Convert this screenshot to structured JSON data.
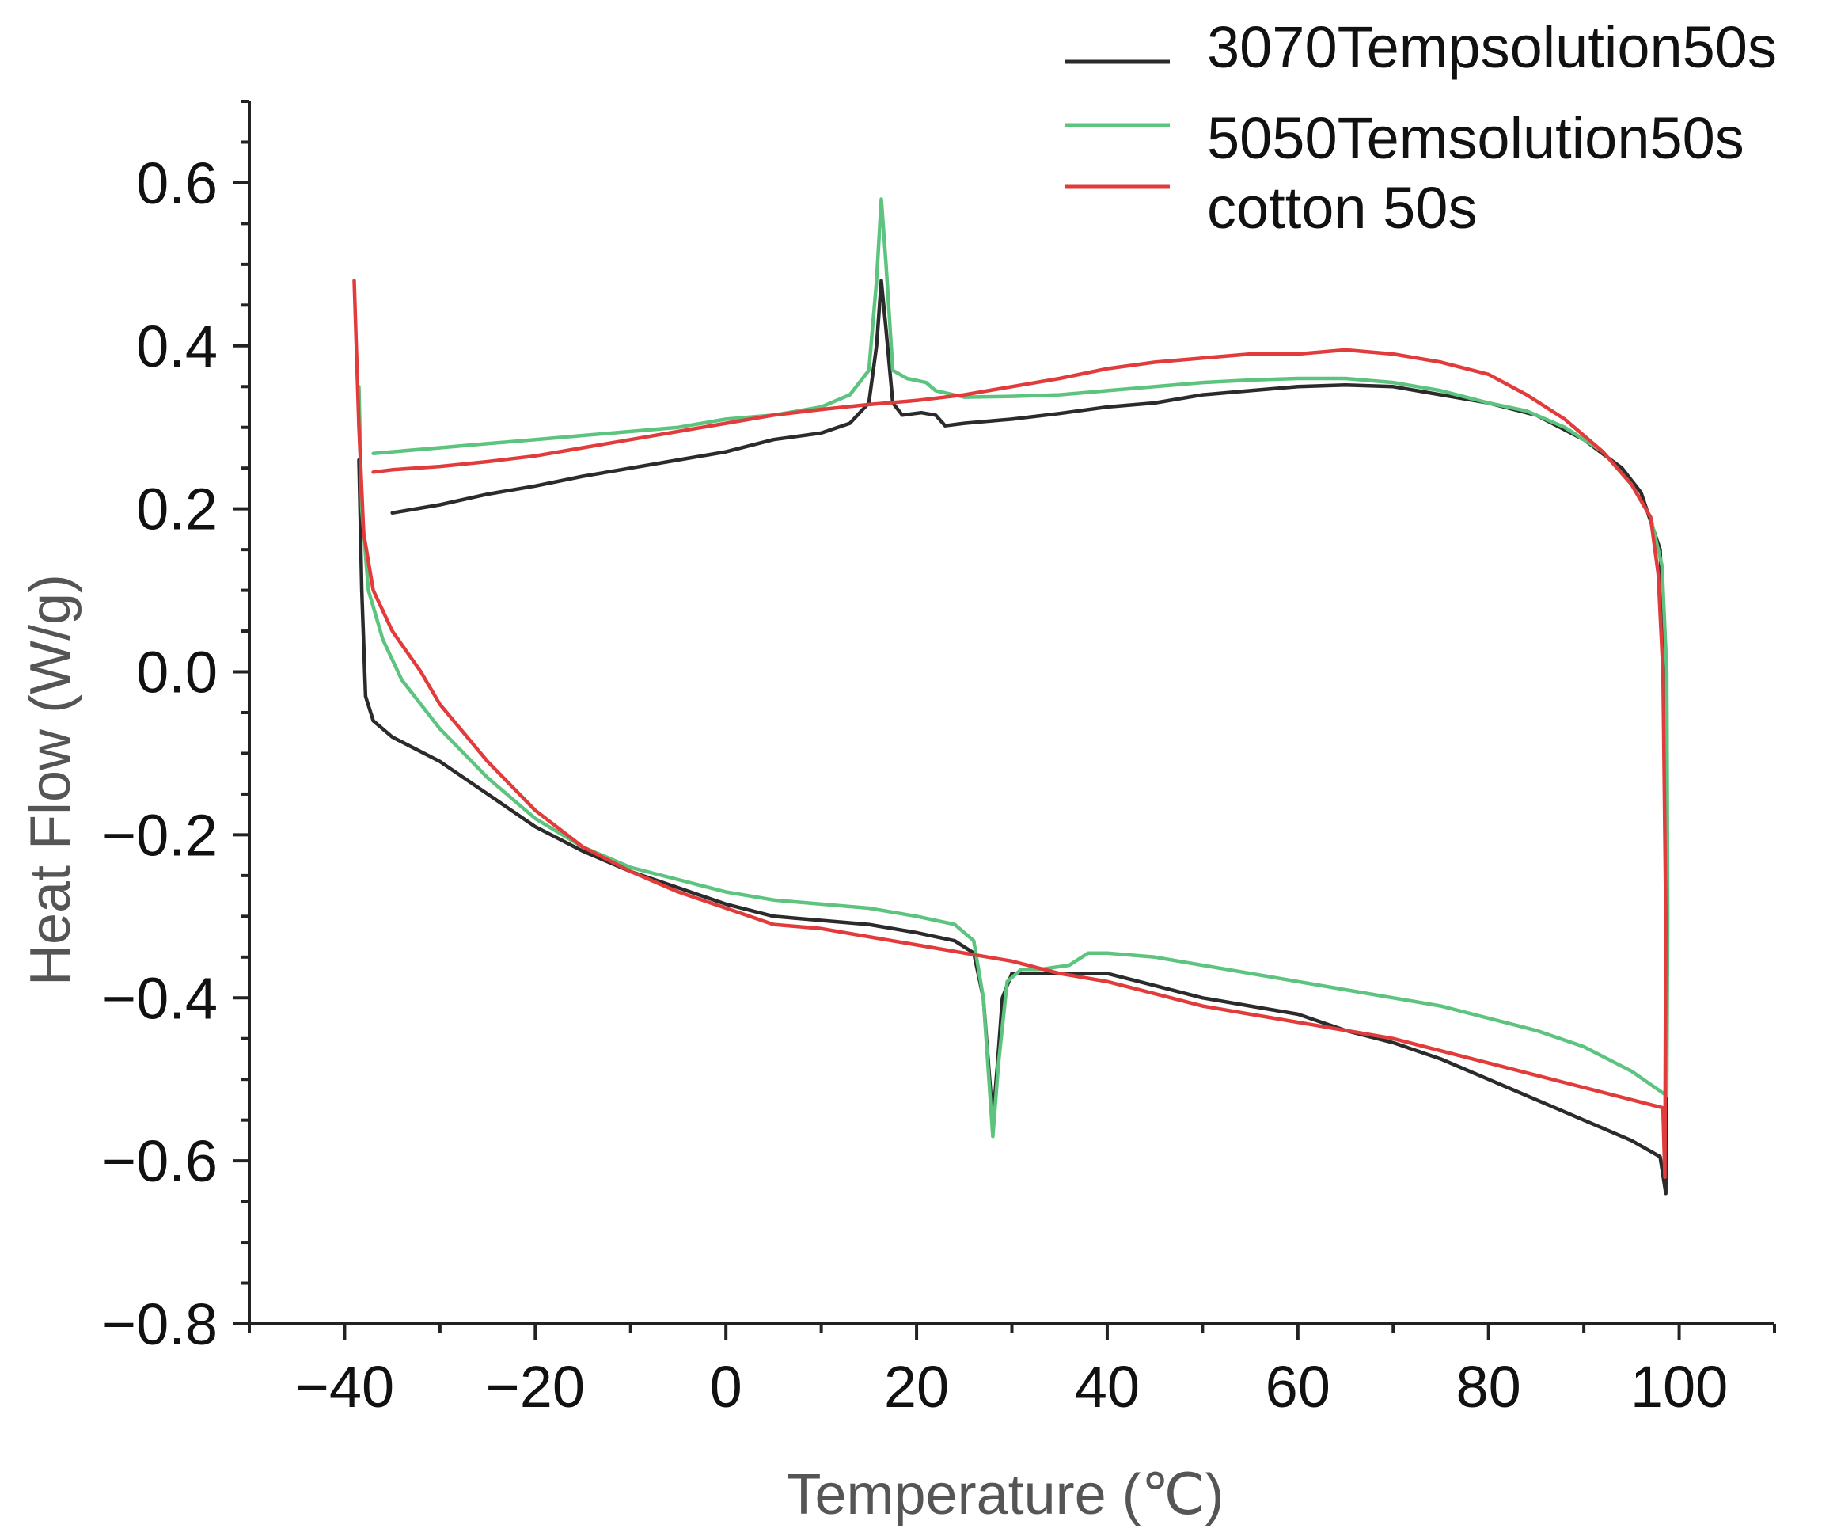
{
  "chart_data": {
    "type": "line",
    "title": "",
    "xlabel": "Temperature (℃)",
    "ylabel": "Heat Flow (W/g)",
    "xlim": [
      -50,
      110
    ],
    "ylim": [
      -0.8,
      0.7
    ],
    "x_ticks": [
      -40,
      -20,
      0,
      20,
      40,
      60,
      80,
      100
    ],
    "x_tick_labels": [
      "−40",
      "−20",
      "0",
      "20",
      "40",
      "60",
      "80",
      "100"
    ],
    "y_ticks": [
      0.6,
      0.4,
      0.2,
      0.0,
      -0.2,
      -0.4,
      -0.6,
      -0.8
    ],
    "y_tick_labels": [
      "0.6",
      "0.4",
      "0.2",
      "0.0",
      "−0.2",
      "−0.4",
      "−0.6",
      "−0.8"
    ],
    "grid": false,
    "legend_position": "top-right",
    "series": [
      {
        "name": "3070Tempsolution50s",
        "color": "#2b2b2b",
        "points": [
          [
            -38.5,
            0.26
          ],
          [
            -38.2,
            0.1
          ],
          [
            -37.8,
            -0.03
          ],
          [
            -37,
            -0.06
          ],
          [
            -35,
            -0.08
          ],
          [
            -30,
            -0.11
          ],
          [
            -25,
            -0.15
          ],
          [
            -20,
            -0.19
          ],
          [
            -15,
            -0.22
          ],
          [
            -10,
            -0.245
          ],
          [
            -5,
            -0.265
          ],
          [
            0,
            -0.285
          ],
          [
            5,
            -0.3
          ],
          [
            10,
            -0.305
          ],
          [
            15,
            -0.31
          ],
          [
            20,
            -0.32
          ],
          [
            24,
            -0.33
          ],
          [
            26,
            -0.345
          ],
          [
            27,
            -0.4
          ],
          [
            28,
            -0.55
          ],
          [
            28.5,
            -0.48
          ],
          [
            29,
            -0.4
          ],
          [
            30,
            -0.37
          ],
          [
            35,
            -0.37
          ],
          [
            40,
            -0.37
          ],
          [
            45,
            -0.385
          ],
          [
            50,
            -0.4
          ],
          [
            55,
            -0.41
          ],
          [
            60,
            -0.42
          ],
          [
            65,
            -0.44
          ],
          [
            70,
            -0.455
          ],
          [
            75,
            -0.475
          ],
          [
            80,
            -0.5
          ],
          [
            85,
            -0.525
          ],
          [
            90,
            -0.55
          ],
          [
            95,
            -0.575
          ],
          [
            98,
            -0.595
          ],
          [
            98.6,
            -0.64
          ],
          [
            98.7,
            -0.3
          ],
          [
            98.5,
            0.0
          ],
          [
            98,
            0.15
          ],
          [
            96,
            0.22
          ],
          [
            94,
            0.25
          ],
          [
            90,
            0.285
          ],
          [
            85,
            0.315
          ],
          [
            80,
            0.33
          ],
          [
            75,
            0.34
          ],
          [
            70,
            0.35
          ],
          [
            65,
            0.352
          ],
          [
            60,
            0.35
          ],
          [
            55,
            0.345
          ],
          [
            50,
            0.34
          ],
          [
            45,
            0.33
          ],
          [
            40,
            0.325
          ],
          [
            35,
            0.317
          ],
          [
            30,
            0.31
          ],
          [
            25,
            0.305
          ],
          [
            23,
            0.302
          ],
          [
            22,
            0.315
          ],
          [
            20.5,
            0.318
          ],
          [
            18.5,
            0.315
          ],
          [
            17.5,
            0.33
          ],
          [
            16.8,
            0.42
          ],
          [
            16.3,
            0.48
          ],
          [
            15.8,
            0.4
          ],
          [
            15,
            0.33
          ],
          [
            13,
            0.305
          ],
          [
            10,
            0.293
          ],
          [
            5,
            0.285
          ],
          [
            0,
            0.27
          ],
          [
            -5,
            0.26
          ],
          [
            -10,
            0.25
          ],
          [
            -15,
            0.24
          ],
          [
            -20,
            0.228
          ],
          [
            -25,
            0.218
          ],
          [
            -30,
            0.205
          ],
          [
            -35,
            0.195
          ]
        ]
      },
      {
        "name": "5050Temsolution50s",
        "color": "#5cc47e",
        "points": [
          [
            -38.5,
            0.35
          ],
          [
            -38.2,
            0.2
          ],
          [
            -37.5,
            0.1
          ],
          [
            -36,
            0.04
          ],
          [
            -34,
            -0.01
          ],
          [
            -30,
            -0.07
          ],
          [
            -25,
            -0.13
          ],
          [
            -20,
            -0.18
          ],
          [
            -15,
            -0.215
          ],
          [
            -10,
            -0.24
          ],
          [
            -5,
            -0.255
          ],
          [
            0,
            -0.27
          ],
          [
            5,
            -0.28
          ],
          [
            10,
            -0.285
          ],
          [
            15,
            -0.29
          ],
          [
            20,
            -0.3
          ],
          [
            24,
            -0.31
          ],
          [
            26,
            -0.33
          ],
          [
            27,
            -0.4
          ],
          [
            28,
            -0.57
          ],
          [
            28.6,
            -0.48
          ],
          [
            29.5,
            -0.38
          ],
          [
            31,
            -0.365
          ],
          [
            33,
            -0.365
          ],
          [
            36,
            -0.36
          ],
          [
            38,
            -0.345
          ],
          [
            40,
            -0.345
          ],
          [
            45,
            -0.35
          ],
          [
            50,
            -0.36
          ],
          [
            55,
            -0.37
          ],
          [
            60,
            -0.38
          ],
          [
            65,
            -0.39
          ],
          [
            70,
            -0.4
          ],
          [
            75,
            -0.41
          ],
          [
            80,
            -0.425
          ],
          [
            85,
            -0.44
          ],
          [
            90,
            -0.46
          ],
          [
            95,
            -0.49
          ],
          [
            98.7,
            -0.52
          ],
          [
            98.8,
            -0.3
          ],
          [
            98.7,
            0.0
          ],
          [
            98.2,
            0.13
          ],
          [
            97,
            0.19
          ],
          [
            95,
            0.23
          ],
          [
            92,
            0.27
          ],
          [
            88,
            0.3
          ],
          [
            84,
            0.32
          ],
          [
            80,
            0.33
          ],
          [
            75,
            0.345
          ],
          [
            70,
            0.355
          ],
          [
            65,
            0.36
          ],
          [
            60,
            0.36
          ],
          [
            55,
            0.358
          ],
          [
            50,
            0.355
          ],
          [
            45,
            0.35
          ],
          [
            40,
            0.345
          ],
          [
            35,
            0.34
          ],
          [
            30,
            0.338
          ],
          [
            25,
            0.337
          ],
          [
            22,
            0.345
          ],
          [
            21,
            0.355
          ],
          [
            19,
            0.36
          ],
          [
            17.5,
            0.37
          ],
          [
            16.8,
            0.5
          ],
          [
            16.3,
            0.58
          ],
          [
            15.8,
            0.48
          ],
          [
            15,
            0.37
          ],
          [
            13,
            0.34
          ],
          [
            10,
            0.325
          ],
          [
            5,
            0.315
          ],
          [
            0,
            0.31
          ],
          [
            -5,
            0.3
          ],
          [
            -10,
            0.295
          ],
          [
            -15,
            0.29
          ],
          [
            -20,
            0.285
          ],
          [
            -25,
            0.28
          ],
          [
            -30,
            0.275
          ],
          [
            -35,
            0.27
          ],
          [
            -37,
            0.268
          ]
        ]
      },
      {
        "name": "cotton 50s",
        "color": "#e23b3b",
        "points": [
          [
            -39,
            0.48
          ],
          [
            -38.5,
            0.3
          ],
          [
            -38,
            0.17
          ],
          [
            -37,
            0.1
          ],
          [
            -35,
            0.05
          ],
          [
            -32,
            0.0
          ],
          [
            -30,
            -0.04
          ],
          [
            -25,
            -0.11
          ],
          [
            -20,
            -0.17
          ],
          [
            -15,
            -0.215
          ],
          [
            -10,
            -0.245
          ],
          [
            -5,
            -0.27
          ],
          [
            0,
            -0.29
          ],
          [
            5,
            -0.31
          ],
          [
            10,
            -0.315
          ],
          [
            15,
            -0.325
          ],
          [
            20,
            -0.335
          ],
          [
            25,
            -0.345
          ],
          [
            30,
            -0.355
          ],
          [
            35,
            -0.37
          ],
          [
            40,
            -0.38
          ],
          [
            45,
            -0.395
          ],
          [
            50,
            -0.41
          ],
          [
            55,
            -0.42
          ],
          [
            60,
            -0.43
          ],
          [
            65,
            -0.44
          ],
          [
            70,
            -0.45
          ],
          [
            75,
            -0.465
          ],
          [
            80,
            -0.48
          ],
          [
            85,
            -0.495
          ],
          [
            90,
            -0.51
          ],
          [
            95,
            -0.525
          ],
          [
            98.3,
            -0.535
          ],
          [
            98.5,
            -0.62
          ],
          [
            98.6,
            -0.3
          ],
          [
            98.3,
            0.0
          ],
          [
            97.8,
            0.12
          ],
          [
            97,
            0.19
          ],
          [
            95,
            0.23
          ],
          [
            92,
            0.27
          ],
          [
            88,
            0.31
          ],
          [
            84,
            0.34
          ],
          [
            80,
            0.365
          ],
          [
            75,
            0.38
          ],
          [
            70,
            0.39
          ],
          [
            65,
            0.395
          ],
          [
            60,
            0.39
          ],
          [
            55,
            0.39
          ],
          [
            50,
            0.385
          ],
          [
            45,
            0.38
          ],
          [
            40,
            0.372
          ],
          [
            35,
            0.36
          ],
          [
            30,
            0.35
          ],
          [
            25,
            0.34
          ],
          [
            20,
            0.333
          ],
          [
            15,
            0.328
          ],
          [
            10,
            0.322
          ],
          [
            5,
            0.315
          ],
          [
            0,
            0.305
          ],
          [
            -5,
            0.295
          ],
          [
            -10,
            0.285
          ],
          [
            -15,
            0.275
          ],
          [
            -20,
            0.265
          ],
          [
            -25,
            0.258
          ],
          [
            -30,
            0.252
          ],
          [
            -35,
            0.248
          ],
          [
            -37,
            0.245
          ]
        ]
      }
    ]
  }
}
